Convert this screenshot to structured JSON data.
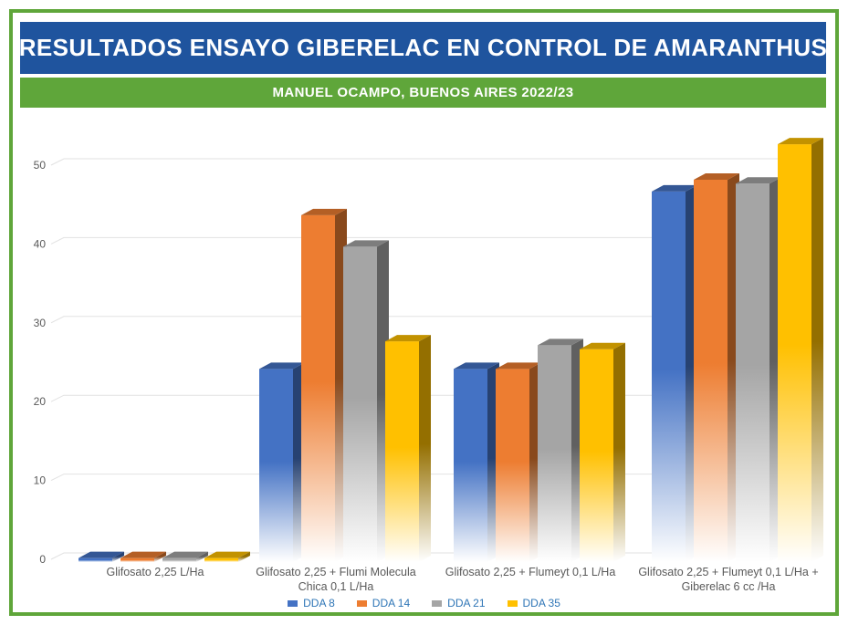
{
  "frame": {
    "border_color": "#5FA63A"
  },
  "header": {
    "title": "RESULTADOS ENSAYO GIBERELAC EN CONTROL DE AMARANTHUS",
    "title_bg": "#1F549E",
    "title_color": "#FFFFFF",
    "subtitle": "MANUEL OCAMPO, BUENOS AIRES 2022/23",
    "subtitle_bg": "#5FA63A",
    "subtitle_color": "#FFFFFF"
  },
  "chart_data": {
    "type": "bar",
    "style": "3d-clustered-column",
    "title": "",
    "xlabel": "",
    "ylabel": "",
    "categories": [
      "Glifosato 2,25 L/Ha",
      "Glifosato 2,25 + Flumi Molecula Chica 0,1  L/Ha",
      "Glifosato 2,25 + Flumeyt 0,1  L/Ha",
      "Glifosato 2,25 + Flumeyt 0,1  L/Ha + Giberelac 6 cc /Ha"
    ],
    "category_label_lines": [
      [
        "Glifosato 2,25 L/Ha"
      ],
      [
        "Glifosato 2,25 + Flumi Molecula",
        "Chica 0,1  L/Ha"
      ],
      [
        "Glifosato 2,25 + Flumeyt 0,1  L/Ha"
      ],
      [
        "Glifosato 2,25 + Flumeyt 0,1  L/Ha +",
        "Giberelac 6 cc /Ha"
      ]
    ],
    "series": [
      {
        "name": "DDA 8",
        "color": "#4472C4",
        "values": [
          0.5,
          24.5,
          24.5,
          47
        ]
      },
      {
        "name": "DDA 14",
        "color": "#ED7D31",
        "values": [
          0.5,
          44,
          24.5,
          48.5
        ]
      },
      {
        "name": "DDA 21",
        "color": "#A5A5A5",
        "values": [
          0.5,
          40,
          27.5,
          48
        ]
      },
      {
        "name": "DDA 35",
        "color": "#FFC000",
        "values": [
          0.5,
          28,
          27,
          53
        ]
      }
    ],
    "y_axis": {
      "ticks": [
        0,
        10,
        20,
        30,
        40,
        50
      ],
      "min": 0,
      "max": 55
    },
    "grid": true,
    "legend_position": "bottom",
    "text_colors": {
      "axis": "#595959",
      "category": "#595959",
      "legend": "#2E75B6"
    },
    "gridline_color": "#E2E2E2"
  }
}
